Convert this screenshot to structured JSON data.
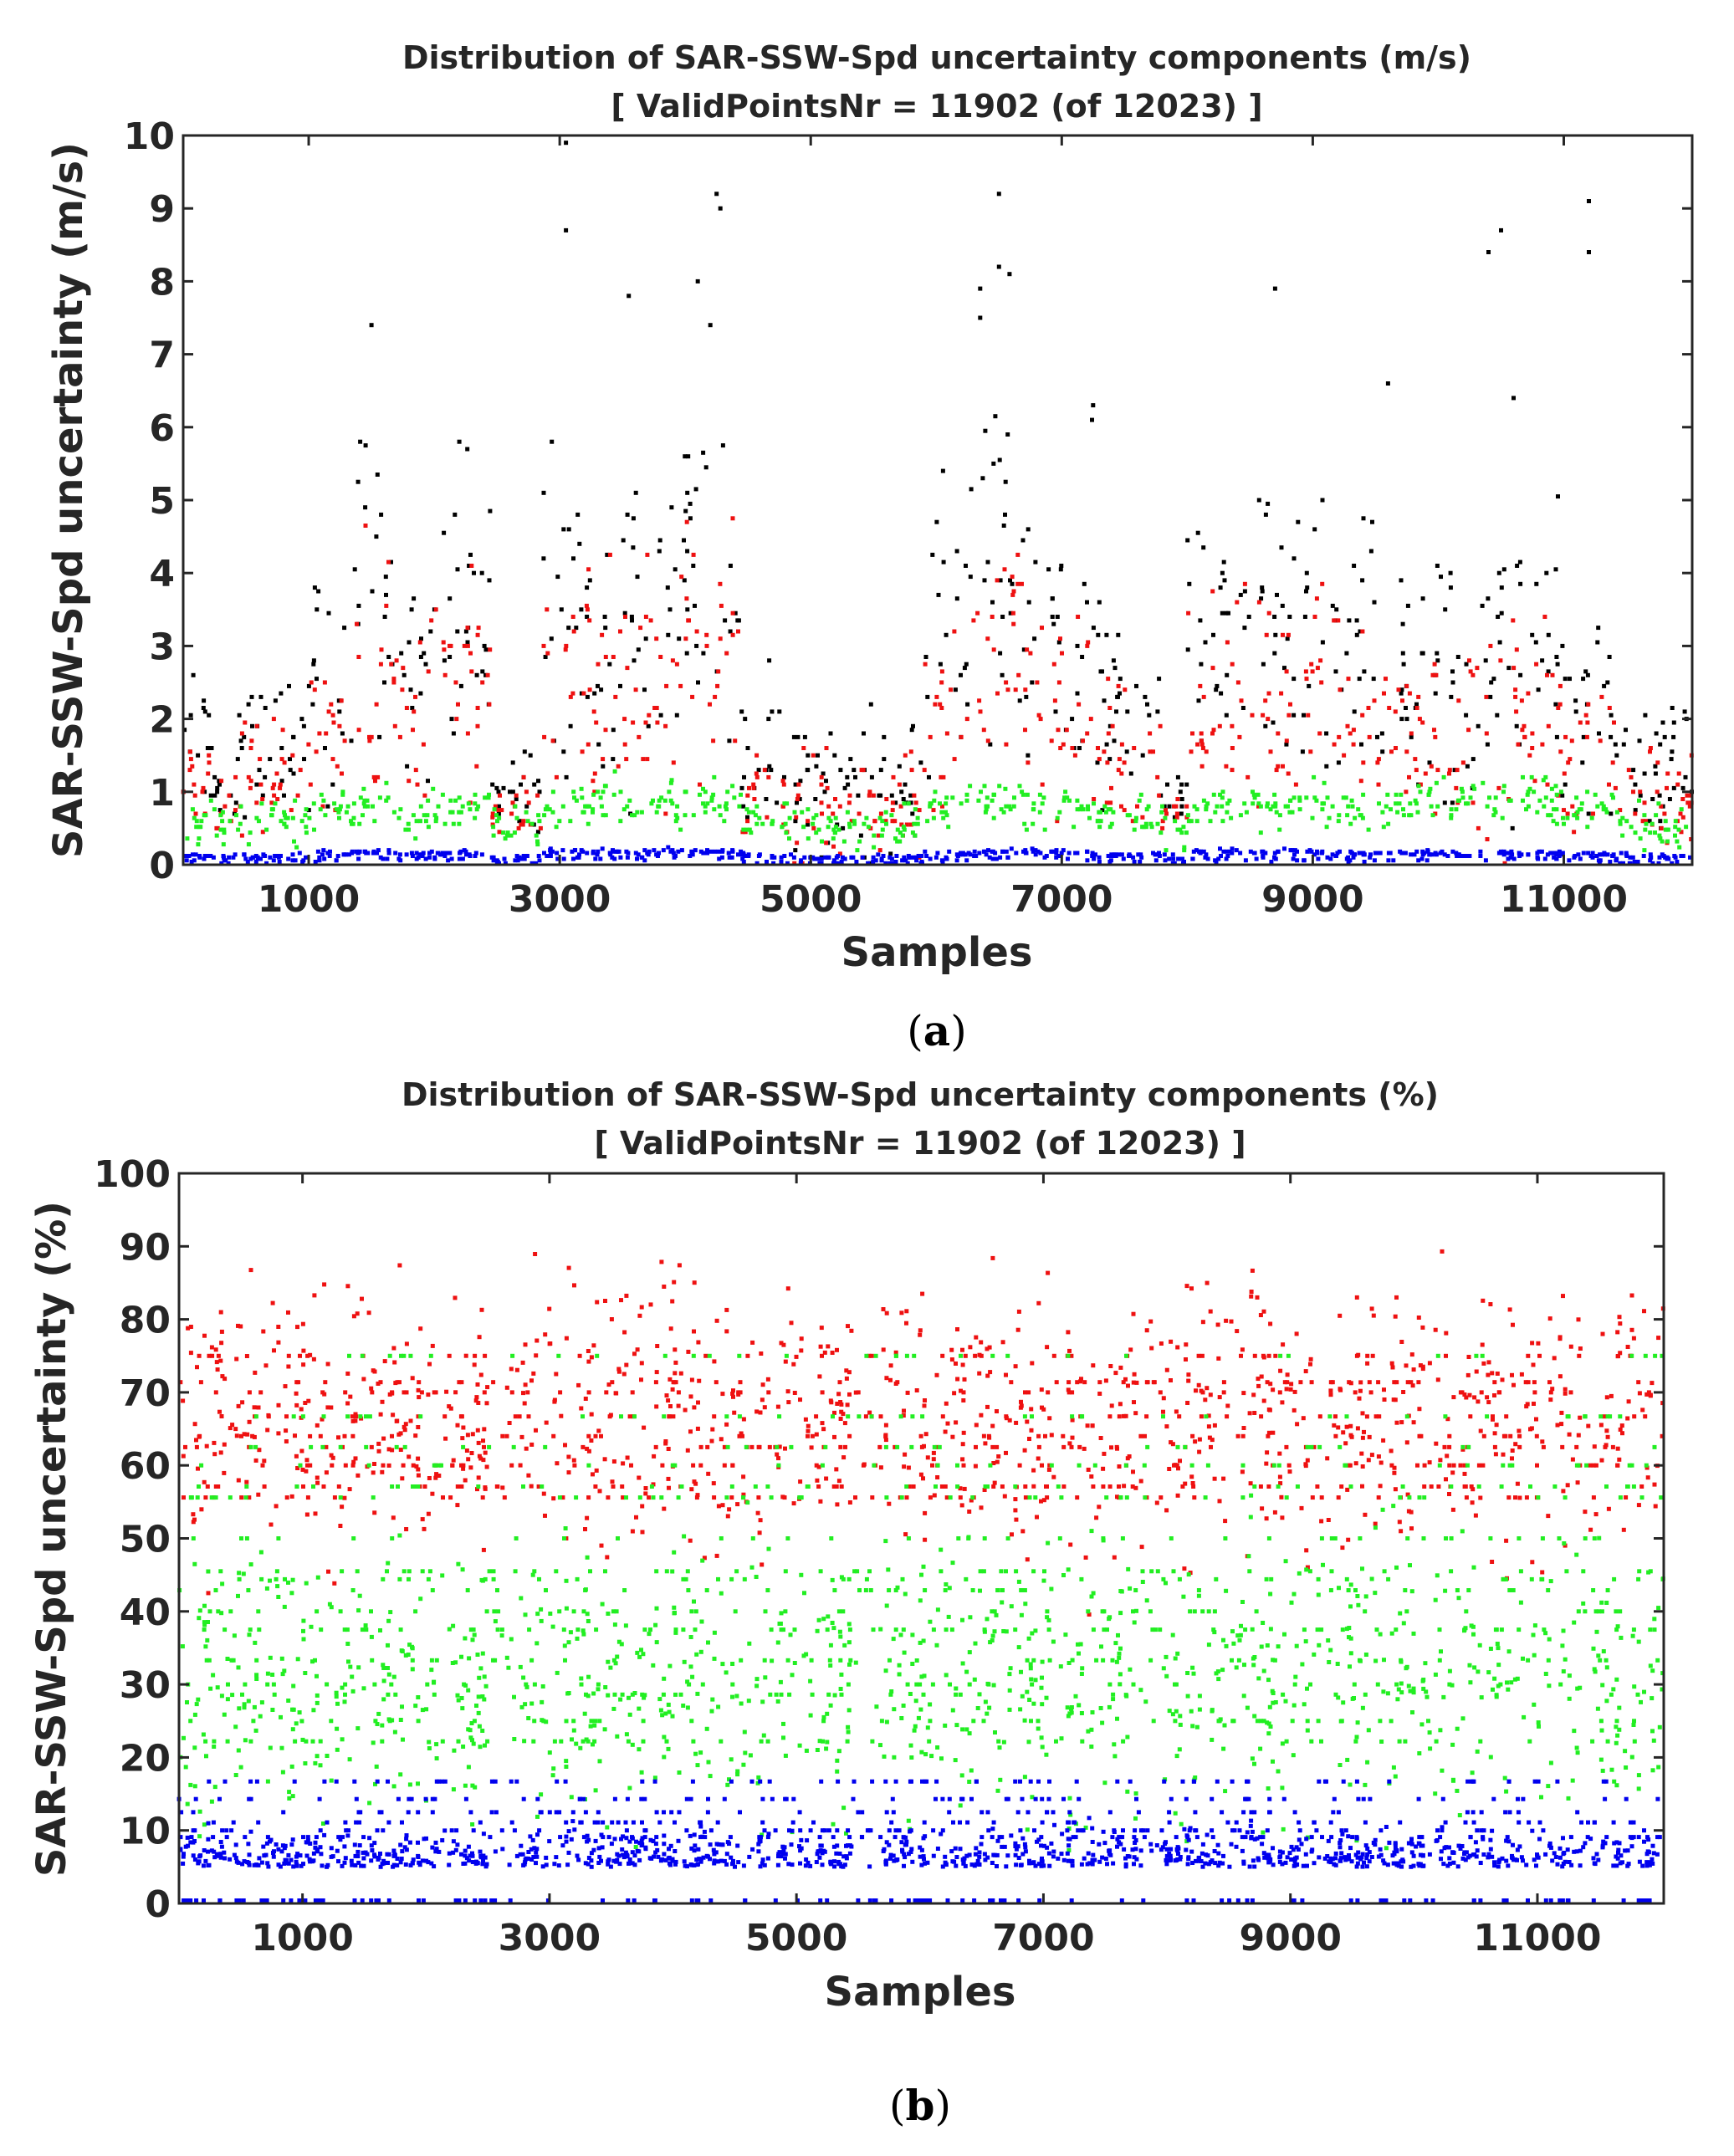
{
  "chart_data": [
    {
      "id": "a",
      "type": "scatter",
      "panel_label": "a",
      "title_line1": "Distribution of SAR-SSW-Spd uncertainty components (m/s)",
      "title_line2": "[ ValidPointsNr = 11902 (of 12023) ]",
      "xlabel": "Samples",
      "ylabel": "SAR-SSW-Spd uncertainty (m/s)",
      "xlim": [
        0,
        12023
      ],
      "ylim": [
        0,
        10
      ],
      "xticks": [
        1000,
        3000,
        5000,
        7000,
        9000,
        11000
      ],
      "yticks": [
        0,
        1,
        2,
        3,
        4,
        5,
        6,
        7,
        8,
        9,
        10
      ],
      "colors": {
        "total": "#000000",
        "comp1": "#ee1111",
        "comp2": "#22ee22",
        "comp3": "#0000ee"
      },
      "segments": [
        {
          "x": [
            0,
            250
          ],
          "total": 1.7,
          "red": 1.1,
          "green": 0.6,
          "blue": 0.12,
          "spread": 0.5
        },
        {
          "x": [
            250,
            420
          ],
          "total": 1.0,
          "red": 0.75,
          "green": 0.55,
          "blue": 0.1,
          "spread": 0.25
        },
        {
          "x": [
            420,
            1000
          ],
          "total": 1.7,
          "red": 1.3,
          "green": 0.6,
          "blue": 0.12,
          "spread": 0.5
        },
        {
          "x": [
            1000,
            1350
          ],
          "total": 2.7,
          "red": 2.2,
          "green": 0.75,
          "blue": 0.15,
          "spread": 0.9
        },
        {
          "x": [
            1350,
            1700
          ],
          "total": 3.6,
          "red": 2.8,
          "green": 0.8,
          "blue": 0.18,
          "spread": 1.3
        },
        {
          "x": [
            1700,
            1950
          ],
          "total": 2.6,
          "red": 2.0,
          "green": 0.7,
          "blue": 0.15,
          "spread": 0.8
        },
        {
          "x": [
            1950,
            2450
          ],
          "total": 3.0,
          "red": 2.4,
          "green": 0.75,
          "blue": 0.16,
          "spread": 1.0
        },
        {
          "x": [
            2450,
            2850
          ],
          "total": 1.0,
          "red": 0.8,
          "green": 0.55,
          "blue": 0.1,
          "spread": 0.3
        },
        {
          "x": [
            2850,
            3300
          ],
          "total": 3.4,
          "red": 2.7,
          "green": 0.8,
          "blue": 0.18,
          "spread": 1.2
        },
        {
          "x": [
            3300,
            4000
          ],
          "total": 3.6,
          "red": 2.9,
          "green": 0.85,
          "blue": 0.18,
          "spread": 1.3
        },
        {
          "x": [
            4000,
            4450
          ],
          "total": 3.6,
          "red": 2.9,
          "green": 0.9,
          "blue": 0.18,
          "spread": 1.3
        },
        {
          "x": [
            4450,
            4800
          ],
          "total": 1.5,
          "red": 1.2,
          "green": 0.6,
          "blue": 0.12,
          "spread": 0.5
        },
        {
          "x": [
            4800,
            5900
          ],
          "total": 1.2,
          "red": 0.95,
          "green": 0.55,
          "blue": 0.1,
          "spread": 0.45
        },
        {
          "x": [
            5900,
            6250
          ],
          "total": 3.0,
          "red": 2.3,
          "green": 0.8,
          "blue": 0.16,
          "spread": 1.0
        },
        {
          "x": [
            6250,
            6700
          ],
          "total": 3.8,
          "red": 3.0,
          "green": 0.85,
          "blue": 0.18,
          "spread": 1.4
        },
        {
          "x": [
            6700,
            7300
          ],
          "total": 3.1,
          "red": 2.5,
          "green": 0.8,
          "blue": 0.17,
          "spread": 1.0
        },
        {
          "x": [
            7300,
            7800
          ],
          "total": 2.0,
          "red": 1.6,
          "green": 0.65,
          "blue": 0.13,
          "spread": 0.6
        },
        {
          "x": [
            7800,
            8000
          ],
          "total": 0.9,
          "red": 0.75,
          "green": 0.5,
          "blue": 0.1,
          "spread": 0.2
        },
        {
          "x": [
            8000,
            8700
          ],
          "total": 3.2,
          "red": 2.5,
          "green": 0.8,
          "blue": 0.17,
          "spread": 1.0
        },
        {
          "x": [
            8700,
            9200
          ],
          "total": 3.3,
          "red": 2.6,
          "green": 0.8,
          "blue": 0.17,
          "spread": 1.0
        },
        {
          "x": [
            9200,
            9800
          ],
          "total": 2.8,
          "red": 2.2,
          "green": 0.75,
          "blue": 0.16,
          "spread": 0.9
        },
        {
          "x": [
            9800,
            10300
          ],
          "total": 2.5,
          "red": 1.9,
          "green": 0.9,
          "blue": 0.15,
          "spread": 0.9
        },
        {
          "x": [
            10300,
            11000
          ],
          "total": 2.9,
          "red": 2.2,
          "green": 0.9,
          "blue": 0.16,
          "spread": 1.0
        },
        {
          "x": [
            11000,
            11400
          ],
          "total": 2.3,
          "red": 1.7,
          "green": 0.7,
          "blue": 0.14,
          "spread": 0.7
        },
        {
          "x": [
            11400,
            12023
          ],
          "total": 1.4,
          "red": 1.0,
          "green": 0.55,
          "blue": 0.11,
          "spread": 0.4
        }
      ],
      "outliers": [
        [
          3050,
          9.9
        ],
        [
          4250,
          9.2
        ],
        [
          4280,
          9.0
        ],
        [
          6500,
          9.2
        ],
        [
          11200,
          9.1
        ],
        [
          10500,
          8.7
        ],
        [
          3050,
          8.7
        ],
        [
          6500,
          8.2
        ],
        [
          11200,
          8.4
        ],
        [
          4100,
          8.0
        ],
        [
          8700,
          7.9
        ],
        [
          1500,
          7.4
        ],
        [
          6350,
          7.9
        ],
        [
          3550,
          7.8
        ],
        [
          10400,
          8.4
        ],
        [
          6350,
          7.5
        ],
        [
          4200,
          7.4
        ],
        [
          2200,
          5.8
        ],
        [
          9600,
          6.6
        ],
        [
          7250,
          6.3
        ],
        [
          10600,
          6.4
        ]
      ]
    },
    {
      "id": "b",
      "type": "scatter",
      "panel_label": "b",
      "title_line1": "Distribution of SAR-SSW-Spd uncertainty components (%)",
      "title_line2": "[ ValidPointsNr = 11902 (of 12023) ]",
      "xlabel": "Samples",
      "ylabel": "SAR-SSW-Spd uncertainty (%)",
      "xlim": [
        0,
        12023
      ],
      "ylim": [
        0,
        100
      ],
      "xticks": [
        1000,
        3000,
        5000,
        7000,
        9000,
        11000
      ],
      "yticks": [
        0,
        10,
        20,
        30,
        40,
        50,
        60,
        70,
        80,
        90,
        100
      ],
      "colors": {
        "comp1": "#ee1111",
        "comp2": "#22ee22",
        "comp3": "#0000ee"
      },
      "red_center": 67,
      "green_center": 30,
      "blue_center": 6,
      "green_bands": [
        50,
        33.3,
        37.5,
        40,
        42.9,
        44.4,
        45.5,
        25,
        28.6,
        30,
        22.2,
        55.6,
        57.1,
        60,
        62.5,
        66.7,
        75
      ],
      "red_bands": [
        60,
        62.5,
        64,
        66.7,
        70,
        71.4,
        75,
        57.1,
        55.6
      ],
      "blue_bands": [
        9.1,
        10,
        11.1,
        12.5,
        14.3,
        16.7
      ]
    }
  ]
}
